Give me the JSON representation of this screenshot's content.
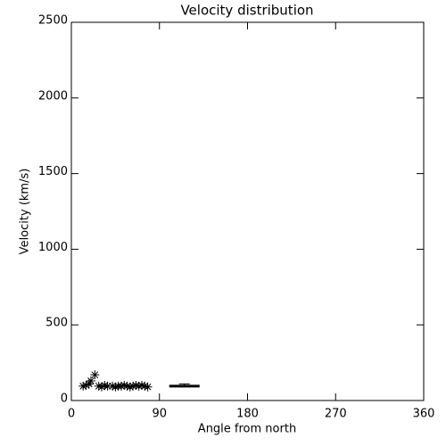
{
  "chart_data": {
    "type": "scatter",
    "title": "Velocity distribution",
    "x_label": "Angle from north",
    "y_label": "Velocity (km/s)",
    "x": [
      12,
      15,
      18,
      20,
      24,
      28,
      31,
      34,
      37,
      42,
      45,
      48,
      51,
      54,
      57,
      60,
      63,
      66,
      69,
      72,
      75,
      78
    ],
    "values": [
      95,
      100,
      110,
      130,
      170,
      95,
      90,
      100,
      95,
      95,
      90,
      95,
      95,
      100,
      95,
      90,
      95,
      100,
      95,
      100,
      95,
      90
    ],
    "segment": {
      "x": [
        100,
        131
      ],
      "y": 95,
      "error": 15
    },
    "color": "#000000",
    "xlim": [
      0,
      360
    ],
    "xticks": [
      0,
      90,
      180,
      270,
      360
    ],
    "ylim": [
      0,
      2500
    ],
    "yticks": [
      0,
      500,
      1000,
      1500,
      2000,
      2500
    ]
  }
}
